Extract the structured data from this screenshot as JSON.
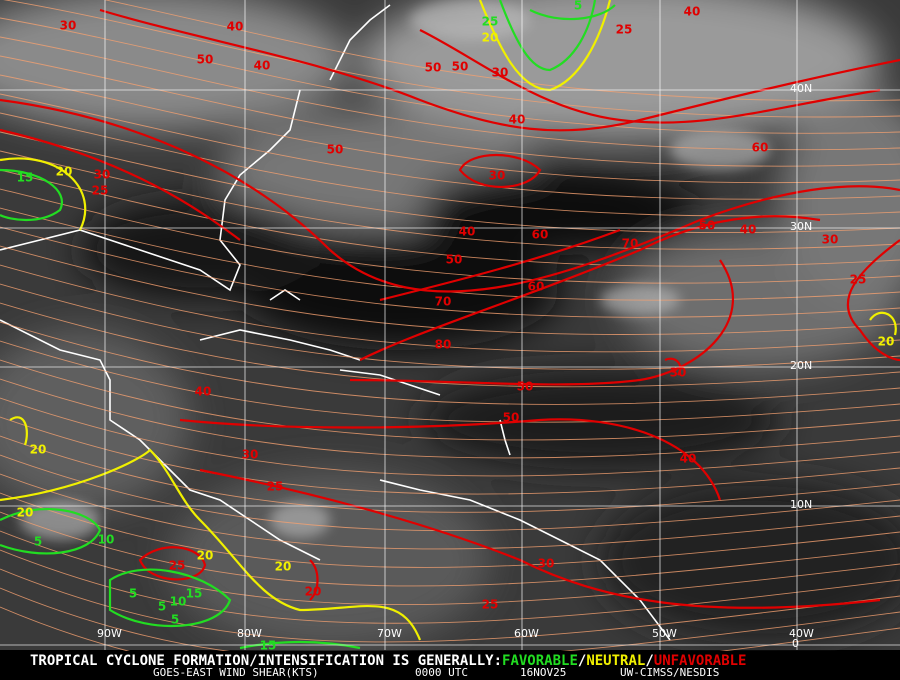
{
  "grid": {
    "latitudes": [
      "40N",
      "30N",
      "20N",
      "10N",
      "0"
    ],
    "longitudes": [
      "90W",
      "80W",
      "70W",
      "60W",
      "50W",
      "40W"
    ]
  },
  "contour_labels": [
    "30",
    "40",
    "50",
    "40",
    "50",
    "50",
    "30",
    "40",
    "25",
    "40",
    "50",
    "30",
    "60",
    "50",
    "40",
    "30",
    "40",
    "60",
    "70",
    "50",
    "60",
    "70",
    "80",
    "25",
    "30",
    "25",
    "20",
    "15",
    "20",
    "30",
    "50",
    "50",
    "40",
    "30",
    "25",
    "40",
    "20",
    "20",
    "5",
    "10",
    "20",
    "25",
    "20",
    "30",
    "25",
    "20",
    "5",
    "5",
    "10",
    "15",
    "5",
    "15",
    "20",
    "25",
    "5"
  ],
  "footer": {
    "line1": "TROPICAL CYCLONE FORMATION/INTENSIFICATION IS GENERALLY:",
    "favorable": "FAVORABLE",
    "sep1": "/",
    "neutral": "NEUTRAL",
    "sep2": "/",
    "unfavorable": "UNFAVORABLE",
    "product": "GOES-EAST WIND SHEAR(KTS)",
    "time": "0000 UTC",
    "date": "16NOV25",
    "source": "UW-CIMSS/NESDIS"
  }
}
